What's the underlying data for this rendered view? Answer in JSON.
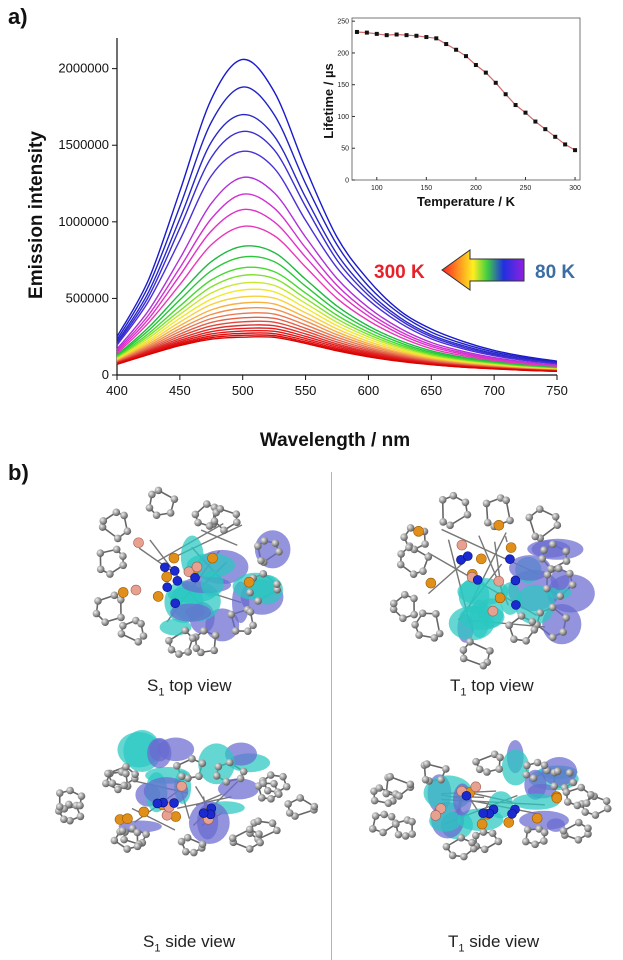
{
  "panel_a_label": "a)",
  "panel_b_label": "b)",
  "chart_data": [
    {
      "type": "line",
      "xlabel": "Wavelength / nm",
      "ylabel": "Emission intensity",
      "xlim": [
        400,
        750
      ],
      "ylim": [
        0,
        2200000
      ],
      "xticks": [
        400,
        450,
        500,
        550,
        600,
        650,
        700,
        750
      ],
      "yticks": [
        0,
        500000,
        1000000,
        1500000,
        2000000
      ],
      "ytick_labels": [
        "0",
        "500000",
        "1000000",
        "1500000",
        "2000000"
      ],
      "x": [
        400,
        425,
        450,
        475,
        500,
        525,
        550,
        575,
        600,
        625,
        650,
        675,
        700,
        725,
        750
      ],
      "series": [
        {
          "color": "#1a1acc",
          "values": [
            250000,
            620000,
            1200000,
            1800000,
            2060000,
            1850000,
            1350000,
            900000,
            620000,
            420000,
            300000,
            220000,
            160000,
            120000,
            90000
          ]
        },
        {
          "color": "#1f22c4",
          "values": [
            230000,
            580000,
            1100000,
            1650000,
            1880000,
            1700000,
            1250000,
            850000,
            580000,
            400000,
            280000,
            205000,
            150000,
            112000,
            85000
          ]
        },
        {
          "color": "#2828c8",
          "values": [
            215000,
            540000,
            1020000,
            1520000,
            1700000,
            1560000,
            1160000,
            790000,
            545000,
            375000,
            262000,
            192000,
            140000,
            104000,
            80000
          ]
        },
        {
          "color": "#3a2ed0",
          "values": [
            205000,
            510000,
            960000,
            1420000,
            1590000,
            1470000,
            1100000,
            750000,
            520000,
            360000,
            250000,
            182000,
            133000,
            99000,
            76000
          ]
        },
        {
          "color": "#4a30d8",
          "values": [
            195000,
            480000,
            880000,
            1300000,
            1460000,
            1350000,
            1010000,
            700000,
            490000,
            340000,
            236000,
            172000,
            126000,
            94000,
            72000
          ]
        },
        {
          "color": "#b030d8",
          "values": [
            170000,
            420000,
            760000,
            1120000,
            1290000,
            1190000,
            900000,
            630000,
            440000,
            305000,
            212000,
            155000,
            114000,
            85000,
            64000
          ]
        },
        {
          "color": "#d030d0",
          "values": [
            160000,
            390000,
            700000,
            1020000,
            1180000,
            1090000,
            830000,
            585000,
            410000,
            285000,
            198000,
            145000,
            106000,
            79000,
            60000
          ]
        },
        {
          "color": "#e030c8",
          "values": [
            150000,
            365000,
            650000,
            940000,
            1080000,
            1000000,
            770000,
            545000,
            385000,
            268000,
            186000,
            136000,
            100000,
            74000,
            56000
          ]
        },
        {
          "color": "#e838b8",
          "values": [
            140000,
            340000,
            590000,
            850000,
            970000,
            910000,
            705000,
            500000,
            355000,
            248000,
            172000,
            126000,
            93000,
            69000,
            52000
          ]
        },
        {
          "color": "#20b840",
          "values": [
            130000,
            310000,
            530000,
            740000,
            840000,
            800000,
            625000,
            450000,
            320000,
            225000,
            158000,
            116000,
            86000,
            64000,
            48000
          ]
        },
        {
          "color": "#28c838",
          "values": [
            124000,
            290000,
            490000,
            680000,
            770000,
            740000,
            580000,
            420000,
            300000,
            211000,
            148000,
            109000,
            81000,
            60000,
            45000
          ]
        },
        {
          "color": "#48d830",
          "values": [
            118000,
            270000,
            450000,
            620000,
            700000,
            675000,
            535000,
            390000,
            280000,
            198000,
            139000,
            102000,
            76000,
            56000,
            42000
          ]
        },
        {
          "color": "#80e030",
          "values": [
            112000,
            255000,
            420000,
            575000,
            650000,
            630000,
            500000,
            366000,
            264000,
            187000,
            131000,
            96000,
            72000,
            53000,
            40000
          ]
        },
        {
          "color": "#c8e830",
          "values": [
            107000,
            240000,
            395000,
            535000,
            600000,
            585000,
            468000,
            344000,
            249000,
            177000,
            124000,
            91000,
            68000,
            50000,
            38000
          ]
        },
        {
          "color": "#f0e830",
          "values": [
            102000,
            226000,
            370000,
            495000,
            555000,
            543000,
            437000,
            322000,
            234000,
            167000,
            117000,
            86000,
            64000,
            47000,
            36000
          ]
        },
        {
          "color": "#f8d040",
          "values": [
            98000,
            214000,
            345000,
            460000,
            510000,
            502000,
            406000,
            301000,
            219000,
            157000,
            110000,
            81000,
            61000,
            45000,
            34000
          ]
        },
        {
          "color": "#f8b040",
          "values": [
            94000,
            202000,
            322000,
            425000,
            470000,
            464000,
            377000,
            281000,
            205000,
            147000,
            104000,
            77000,
            58000,
            43000,
            32000
          ]
        },
        {
          "color": "#f09050",
          "values": [
            90000,
            191000,
            302000,
            395000,
            435000,
            430000,
            352000,
            263000,
            193000,
            139000,
            98000,
            73000,
            55000,
            41000,
            31000
          ]
        },
        {
          "color": "#e87850",
          "values": [
            87000,
            181000,
            284000,
            368000,
            402000,
            398000,
            327000,
            246000,
            181000,
            131000,
            93000,
            69000,
            52000,
            39000,
            30000
          ]
        },
        {
          "color": "#e06048",
          "values": [
            84000,
            172000,
            267000,
            343000,
            373000,
            370000,
            305000,
            230000,
            170000,
            124000,
            88000,
            66000,
            50000,
            37000,
            29000
          ]
        },
        {
          "color": "#e04838",
          "values": [
            81000,
            164000,
            252000,
            320000,
            347000,
            345000,
            286000,
            216000,
            160000,
            117000,
            84000,
            63000,
            48000,
            36000,
            28000
          ]
        },
        {
          "color": "#e03030",
          "values": [
            79000,
            157000,
            238000,
            300000,
            324000,
            322000,
            268000,
            203000,
            151000,
            111000,
            80000,
            60000,
            46000,
            35000,
            27000
          ]
        },
        {
          "color": "#e02020",
          "values": [
            77000,
            151000,
            226000,
            283000,
            304000,
            302000,
            252000,
            192000,
            143000,
            106000,
            77000,
            58000,
            44000,
            34000,
            26000
          ]
        },
        {
          "color": "#e01818",
          "values": [
            75000,
            146000,
            216000,
            268000,
            287000,
            285000,
            238000,
            182000,
            136000,
            101000,
            74000,
            56000,
            43000,
            33000,
            25000
          ]
        },
        {
          "color": "#e01010",
          "values": [
            73000,
            141000,
            207000,
            255000,
            272000,
            270000,
            226000,
            173000,
            130000,
            97000,
            71000,
            54000,
            42000,
            32000,
            25000
          ]
        },
        {
          "color": "#dd0808",
          "values": [
            71000,
            137000,
            199000,
            244000,
            259000,
            257000,
            215000,
            165000,
            124000,
            93000,
            69000,
            52000,
            41000,
            31000,
            24000
          ]
        },
        {
          "color": "#d80404",
          "values": [
            70000,
            133000,
            192000,
            234000,
            247000,
            246000,
            206000,
            158000,
            119000,
            89000,
            67000,
            51000,
            40000,
            31000,
            24000
          ]
        }
      ]
    },
    {
      "type": "scatter",
      "xlabel": "Temperature / K",
      "ylabel": "Lifetime / µs",
      "xlim": [
        75,
        305
      ],
      "ylim": [
        0,
        255
      ],
      "xticks": [
        100,
        150,
        200,
        250,
        300
      ],
      "yticks": [
        0,
        50,
        100,
        150,
        200,
        250
      ],
      "x": [
        80,
        90,
        100,
        110,
        120,
        130,
        140,
        150,
        160,
        170,
        180,
        190,
        200,
        210,
        220,
        230,
        240,
        250,
        260,
        270,
        280,
        290,
        300
      ],
      "y": [
        233,
        232,
        230,
        228,
        229,
        228,
        227,
        225,
        223,
        214,
        205,
        195,
        181,
        169,
        153,
        135,
        118,
        106,
        92,
        80,
        68,
        56,
        47
      ],
      "fit_color": "#d46a6a"
    }
  ],
  "legend": {
    "start_label": "300 K",
    "end_label": "80 K",
    "start_color": "#e8202a",
    "end_color": "#3a6ea5"
  },
  "captions": {
    "s1_top": {
      "symbol": "S",
      "sub": "1",
      "text": " top view"
    },
    "t1_top": {
      "symbol": "T",
      "sub": "1",
      "text": " top view"
    },
    "s1_side": {
      "symbol": "S",
      "sub": "1",
      "text": " side view"
    },
    "t1_side": {
      "symbol": "T",
      "sub": "1",
      "text": " side view"
    }
  }
}
